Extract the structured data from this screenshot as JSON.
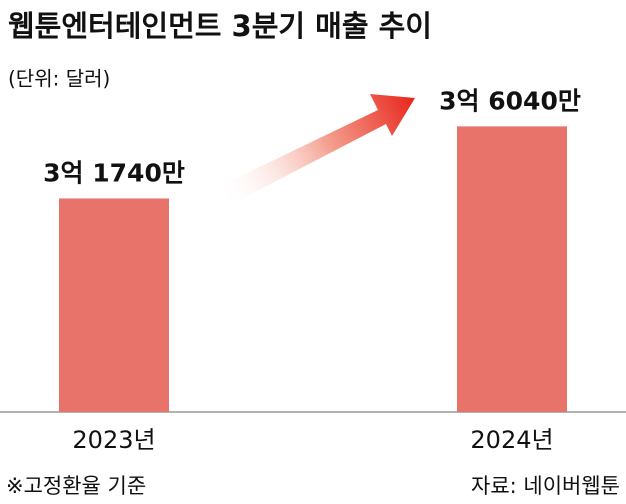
{
  "chart_data": {
    "type": "bar",
    "title": "웹툰엔터테인먼트 3분기 매출 추이",
    "subtitle": "(단위: 달러)",
    "categories": [
      "2023년",
      "2024년"
    ],
    "values": [
      317400000,
      360400000
    ],
    "value_labels": [
      "3억 1740만",
      "3억 6040만"
    ],
    "color": "#e8736a",
    "ylim": [
      190000000,
      400000000
    ],
    "notes": [
      "※고정환율 기준",
      "자료: 네이버웹툰"
    ]
  }
}
